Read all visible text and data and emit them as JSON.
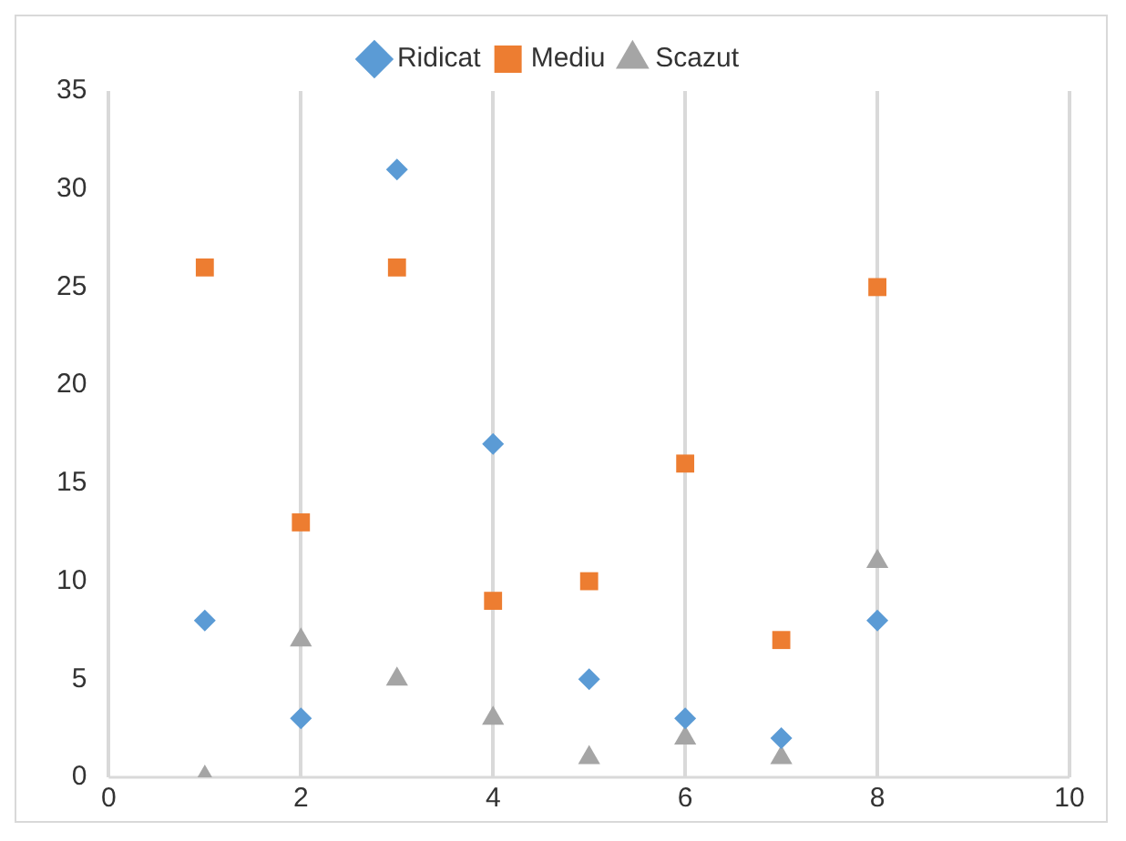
{
  "chart_data": {
    "type": "scatter",
    "x": [
      1,
      2,
      3,
      4,
      5,
      6,
      7,
      8
    ],
    "series": [
      {
        "name": "Ridicat",
        "color": "#5b9bd5",
        "marker": "diamond",
        "values": [
          8,
          3,
          31,
          17,
          5,
          3,
          2,
          8
        ]
      },
      {
        "name": "Mediu",
        "color": "#ed7d31",
        "marker": "square",
        "values": [
          26,
          13,
          26,
          9,
          10,
          16,
          7,
          25
        ]
      },
      {
        "name": "Scazut",
        "color": "#a5a5a5",
        "marker": "triangle",
        "values": [
          0,
          7,
          5,
          3,
          1,
          2,
          1,
          11
        ]
      }
    ],
    "xlim": [
      0,
      10
    ],
    "xticks": [
      0,
      2,
      4,
      6,
      8,
      10
    ],
    "ylim": [
      0,
      35
    ],
    "yticks": [
      0,
      5,
      10,
      15,
      20,
      25,
      30,
      35
    ],
    "grid": "x",
    "legend": "top"
  }
}
